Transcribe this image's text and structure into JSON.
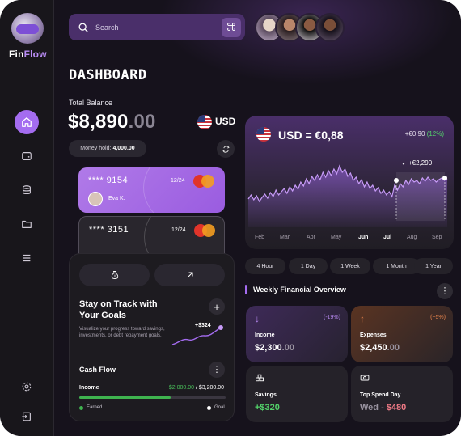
{
  "brand": {
    "part1": "Fin",
    "part2": "Flow"
  },
  "sidebar": {
    "items": [
      {
        "icon": "home-icon",
        "active": true
      },
      {
        "icon": "wallet-icon",
        "active": false
      },
      {
        "icon": "database-icon",
        "active": false
      },
      {
        "icon": "folder-icon",
        "active": false
      },
      {
        "icon": "menu-icon",
        "active": false
      }
    ],
    "bottom": [
      {
        "icon": "settings-icon"
      },
      {
        "icon": "logout-icon"
      }
    ]
  },
  "search": {
    "placeholder": "Search",
    "shortcut": "⌘"
  },
  "header": {
    "title": "DASHBOARD"
  },
  "balance": {
    "label": "Total Balance",
    "whole": "$8,890",
    "decimals": ".00",
    "currency": "USD",
    "money_hold_label": "Money hold:",
    "money_hold_value": "4,000.00"
  },
  "cards": [
    {
      "number": "**** 9154",
      "expiry": "12/24",
      "holder": "Eva K."
    },
    {
      "number": "**** 3151",
      "expiry": "12/24"
    }
  ],
  "goals": {
    "title": "Stay on Track with Your Goals",
    "description": "Visualize your progress toward savings, investments, or debt repayment goals.",
    "amount": "+$324"
  },
  "cash_flow": {
    "title": "Cash Flow",
    "income_label": "Income",
    "earned": "$2,000.00",
    "separator": " / ",
    "goal": "$3,200.00",
    "progress": 0.625,
    "legend_earned": "Earned",
    "legend_goal": "Goal"
  },
  "exchange": {
    "rate": "USD = €0,88",
    "change": "+€0,90",
    "change_pct": "(12%)",
    "marker": "+€2,290",
    "months": [
      "Feb",
      "Mar",
      "Apr",
      "May",
      "Jun",
      "Jul",
      "Aug",
      "Sep"
    ],
    "active_months": [
      "Jun",
      "Jul"
    ]
  },
  "ranges": [
    "4 Hour",
    "1 Day",
    "1 Week",
    "1 Month",
    "1 Year"
  ],
  "weekly": {
    "title": "Weekly Financial Overview"
  },
  "stats": [
    {
      "label": "Income",
      "whole": "$2,300",
      "decimals": ".00",
      "pct": "(-19%)",
      "arrow": "↓",
      "color": "#b789f0"
    },
    {
      "label": "Expenses",
      "whole": "$2,450",
      "decimals": ".00",
      "pct": "(+5%)",
      "arrow": "↑",
      "color": "#f0894f"
    },
    {
      "label": "Savings",
      "whole": "+$320",
      "decimals": "",
      "icon": "coins-icon",
      "color": "#53d26a"
    },
    {
      "label": "Top Spend Day",
      "day": "Wed",
      "sep": " - ",
      "amount": "$480",
      "icon": "cash-icon",
      "color": "#f07a86"
    }
  ],
  "colors": {
    "accent": "#a46cf0",
    "positive": "#53d26a",
    "bg": "#141217"
  }
}
